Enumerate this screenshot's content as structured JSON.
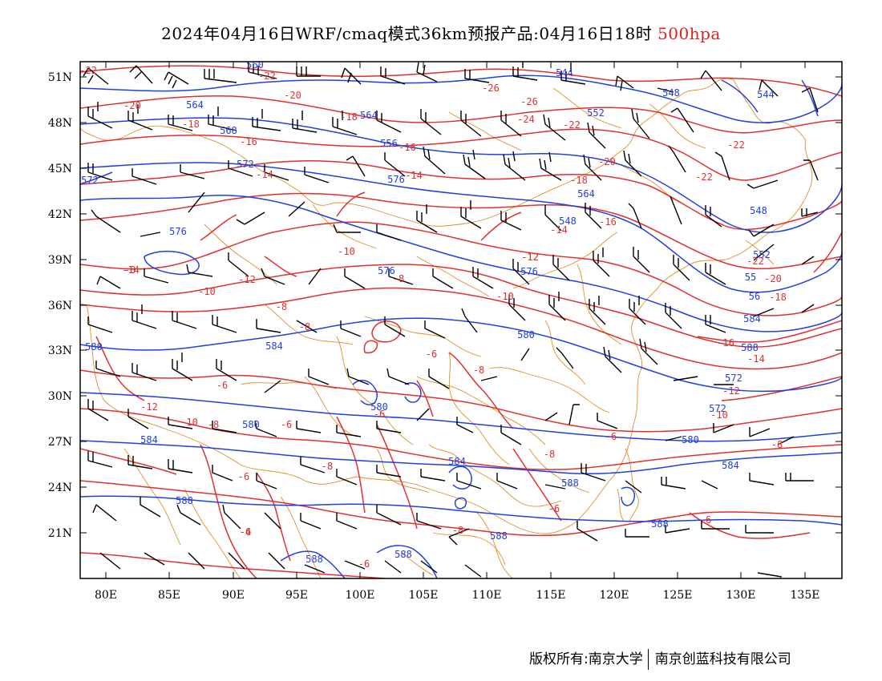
{
  "header": {
    "title": "2024年04月16日WRF/cmaq模式36km预报产品:04月16日18时",
    "level": "500hpa"
  },
  "axes": {
    "lat_labels": [
      "51N",
      "48N",
      "45N",
      "42N",
      "39N",
      "36N",
      "33N",
      "30N",
      "27N",
      "24N",
      "21N"
    ],
    "lon_labels": [
      "80E",
      "85E",
      "90E",
      "95E",
      "100E",
      "105E",
      "110E",
      "115E",
      "120E",
      "125E",
      "130E",
      "135E"
    ]
  },
  "colors": {
    "geopotential": "#2040e0",
    "temperature": "#e03030",
    "borders": "#e0902c",
    "wind": "#000000",
    "level_text": "#e02020"
  },
  "geopotential_labels": [
    "560",
    "544",
    "548",
    "544",
    "564",
    "552",
    "568",
    "564",
    "556",
    "572",
    "572",
    "564",
    "548",
    "548",
    "576",
    "576",
    "576",
    "552",
    "55",
    "56",
    "584",
    "576",
    "580",
    "588",
    "572",
    "580",
    "584",
    "572",
    "580",
    "580",
    "580",
    "584",
    "584",
    "584",
    "588",
    "588",
    "588",
    "588",
    "588",
    "588"
  ],
  "temperature_labels": [
    "-22",
    "-22",
    "-20",
    "-20",
    "-18",
    "-18",
    "-16",
    "-16",
    "-14",
    "-14",
    "-26",
    "-26",
    "-24",
    "-22",
    "-18",
    "-20",
    "-16",
    "-22",
    "-22",
    "-14",
    "-12",
    "-10",
    "-10",
    "-8",
    "-8",
    "-8",
    "-12",
    "-10",
    "-8",
    "-6",
    "-6",
    "-6",
    "-8",
    "-6",
    "-12",
    "-10",
    "-8",
    "-8",
    "-6",
    "-8",
    "-22",
    "-20",
    "-18",
    "-16",
    "-14",
    "-12",
    "-10",
    "-8",
    "-6",
    "-6",
    "-6",
    "-8",
    "-14",
    "-6",
    "-4",
    "-6",
    "-12"
  ],
  "credits": {
    "left": "版权所有:南京大学",
    "right": "南京创蓝科技有限公司"
  }
}
